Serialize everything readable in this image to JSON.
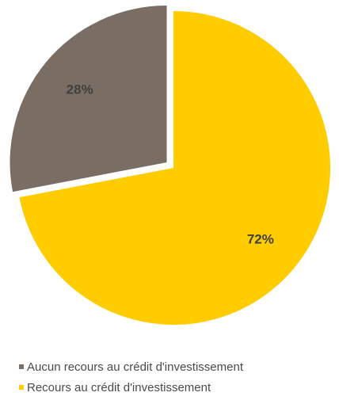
{
  "chart_data": {
    "type": "pie",
    "slices": [
      {
        "label": "Aucun recours au crédit d'investissement",
        "value": 28,
        "value_label": "28%",
        "color": "#7a6e64",
        "exploded": true
      },
      {
        "label": "Recours au crédit d'investissement",
        "value": 72,
        "value_label": "72%",
        "color": "#ffcc00",
        "exploded": false
      }
    ],
    "legend_position": "bottom-left",
    "label_color": "#404040"
  }
}
